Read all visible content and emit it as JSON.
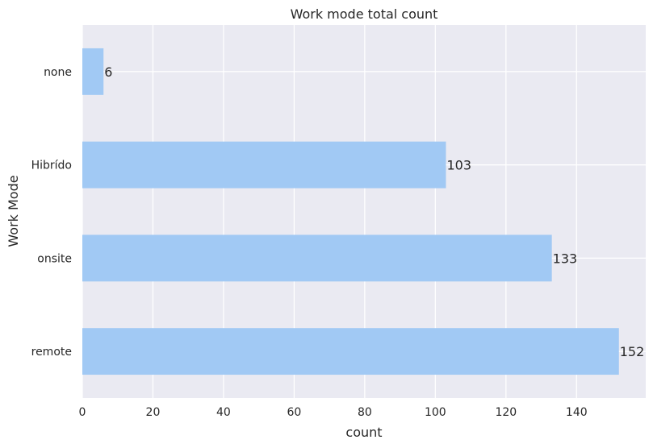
{
  "chart_data": {
    "type": "bar",
    "orientation": "horizontal",
    "title": "Work mode total count",
    "xlabel": "count",
    "ylabel": "Work Mode",
    "categories": [
      "none",
      "Hibrído",
      "onsite",
      "remote"
    ],
    "values": [
      6,
      103,
      133,
      152
    ],
    "data_labels": [
      "6",
      "103",
      "133",
      "152"
    ],
    "xlim": [
      0,
      159.6
    ],
    "xticks": [
      0,
      20,
      40,
      60,
      80,
      100,
      120,
      140
    ],
    "xtick_labels": [
      "0",
      "20",
      "40",
      "60",
      "80",
      "100",
      "120",
      "140"
    ],
    "grid": true,
    "colors": {
      "bar": "#a1c9f4",
      "plot_background": "#eaeaf2",
      "grid": "#ffffff",
      "text": "#262626"
    }
  }
}
